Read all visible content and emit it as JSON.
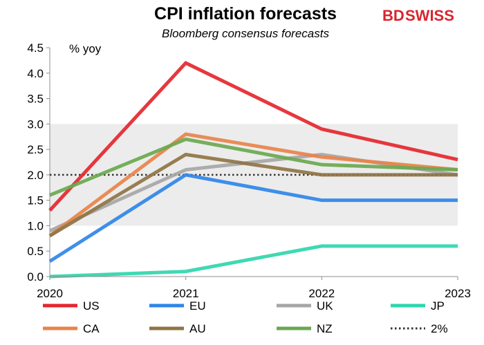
{
  "brand": {
    "part1": "BD",
    "part2": "SWISS",
    "color_bd": "#d7262e",
    "color_swiss": "#d7262e"
  },
  "chart_data": {
    "type": "line",
    "title": "CPI inflation forecasts",
    "subtitle": "Bloomberg consensus forecasts",
    "ylabel": "% yoy",
    "x": [
      "2020",
      "2021",
      "2022",
      "2023"
    ],
    "ylim": [
      0,
      4.5
    ],
    "yticks": [
      "0.0",
      "0.5",
      "1.0",
      "1.5",
      "2.0",
      "2.5",
      "3.0",
      "3.5",
      "4.0",
      "4.5"
    ],
    "target_band": [
      1.0,
      3.0
    ],
    "target_line": {
      "name": "2%",
      "value": 2.0,
      "color": "#333333"
    },
    "series": [
      {
        "name": "US",
        "color": "#e5262e",
        "values": [
          1.3,
          4.2,
          2.9,
          2.3
        ]
      },
      {
        "name": "EU",
        "color": "#2e86e8",
        "values": [
          0.3,
          2.0,
          1.5,
          1.5
        ]
      },
      {
        "name": "UK",
        "color": "#a6a6a6",
        "values": [
          0.9,
          2.1,
          2.4,
          2.0
        ]
      },
      {
        "name": "JP",
        "color": "#2fd6ae",
        "values": [
          0.0,
          0.1,
          0.6,
          0.6
        ]
      },
      {
        "name": "CA",
        "color": "#e8834a",
        "values": [
          0.8,
          2.8,
          2.35,
          2.1
        ]
      },
      {
        "name": "AU",
        "color": "#8f7444",
        "values": [
          0.8,
          2.4,
          2.0,
          2.0
        ]
      },
      {
        "name": "NZ",
        "color": "#6aa84f",
        "values": [
          1.6,
          2.7,
          2.2,
          2.1
        ]
      }
    ],
    "legend_position": "bottom"
  }
}
